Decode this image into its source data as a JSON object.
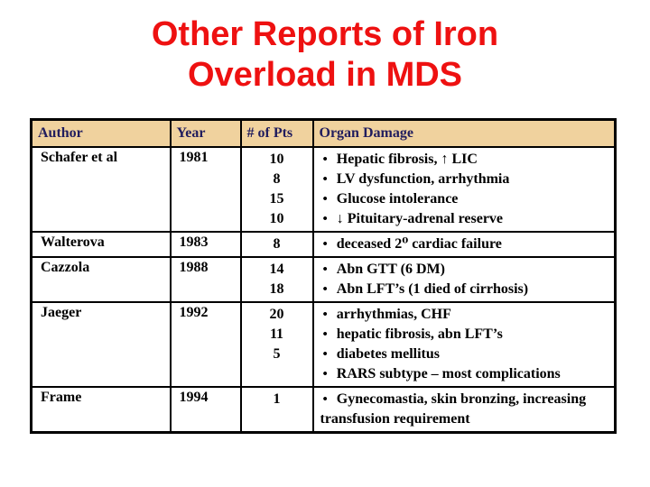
{
  "slide": {
    "title": {
      "line1": "Other Reports of Iron",
      "line2": "Overload in MDS"
    }
  },
  "colors": {
    "title_red": "#ee1111",
    "header_bg": "#f0d29e",
    "header_text": "#211d5e",
    "body_text": "#000000",
    "border": "#000000"
  },
  "table": {
    "bullet_char": "•",
    "headers": [
      "Author",
      "Year",
      "# of Pts",
      "Organ Damage"
    ],
    "rows": [
      {
        "author": "Schafer et al",
        "year": "1981",
        "pts": [
          "10",
          "8",
          "15",
          "10"
        ],
        "damage": [
          "Hepatic fibrosis, ↑ LIC",
          "LV dysfunction, arrhythmia",
          "Glucose intolerance",
          "↓ Pituitary-adrenal reserve"
        ]
      },
      {
        "author": "Walterova",
        "year": "1983",
        "pts": [
          "8"
        ],
        "damage": [
          "deceased 2⁰ cardiac failure"
        ]
      },
      {
        "author": "Cazzola",
        "year": "1988",
        "pts": [
          "14",
          "18"
        ],
        "damage": [
          "Abn GTT (6 DM)",
          "Abn LFT’s (1 died of cirrhosis)"
        ]
      },
      {
        "author": "Jaeger",
        "year": "1992",
        "pts": [
          "20",
          "11",
          "5"
        ],
        "damage": [
          "arrhythmias, CHF",
          "hepatic fibrosis, abn LFT’s",
          "diabetes mellitus",
          "RARS subtype – most complications"
        ]
      },
      {
        "author": "Frame",
        "year": "1994",
        "pts": [
          "1"
        ],
        "damage": [
          "Gynecomastia, skin bronzing, increasing transfusion requirement"
        ]
      }
    ]
  }
}
